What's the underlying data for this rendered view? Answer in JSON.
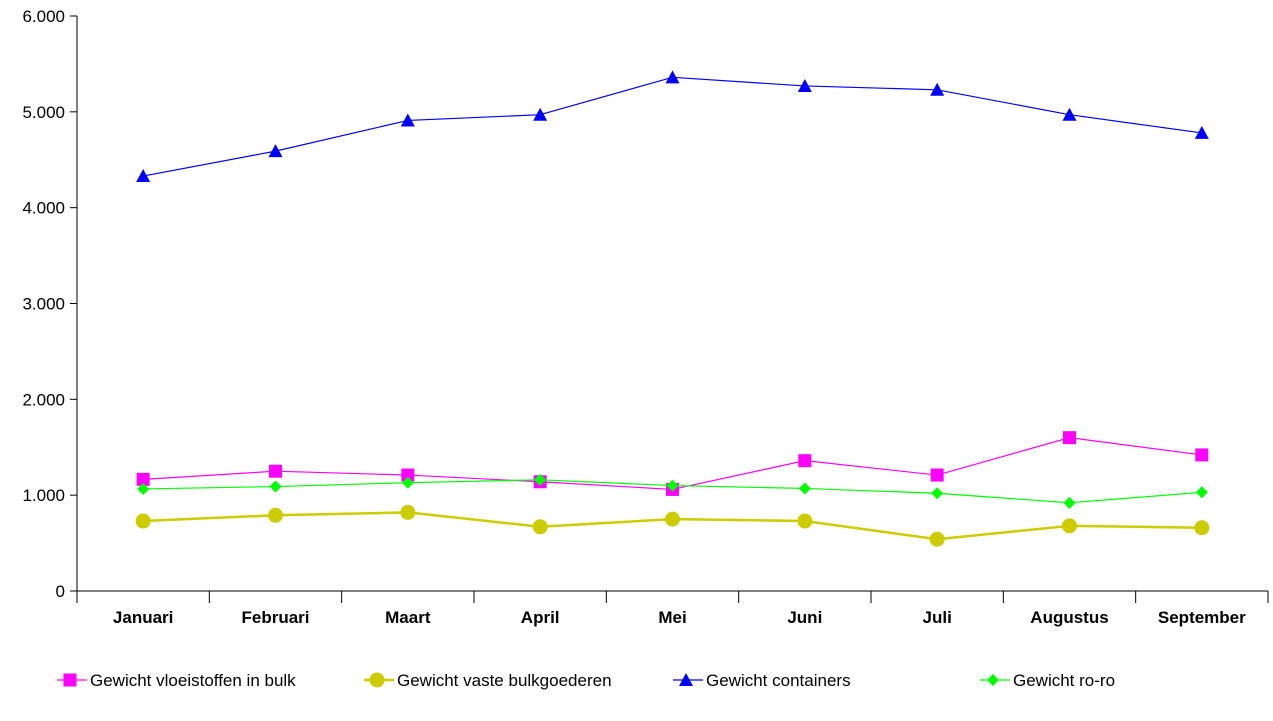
{
  "chart_data": {
    "type": "line",
    "categories": [
      "Januari",
      "Februari",
      "Maart",
      "April",
      "Mei",
      "Juni",
      "Juli",
      "Augustus",
      "September"
    ],
    "ylim": [
      0,
      6000
    ],
    "yticks": [
      0,
      1000,
      2000,
      3000,
      4000,
      5000,
      6000
    ],
    "ytick_labels": [
      "0",
      "1.000",
      "2.000",
      "3.000",
      "4.000",
      "5.000",
      "6.000"
    ],
    "grid": false,
    "legend_position": "bottom",
    "series": [
      {
        "name": "Gewicht vloeistoffen in bulk",
        "color": "#ff00ff",
        "marker": "square",
        "values": [
          1165,
          1250,
          1210,
          1140,
          1060,
          1360,
          1210,
          1600,
          1420
        ]
      },
      {
        "name": "Gewicht vaste bulkgoederen",
        "color": "#cccc00",
        "marker": "circle",
        "values": [
          730,
          790,
          820,
          670,
          750,
          730,
          540,
          680,
          660
        ]
      },
      {
        "name": "Gewicht containers",
        "color": "#0000ff",
        "marker": "triangle",
        "values": [
          4330,
          4590,
          4910,
          4970,
          5360,
          5270,
          5230,
          4970,
          4780
        ]
      },
      {
        "name": "Gewicht ro-ro",
        "color": "#00ff00",
        "marker": "diamond",
        "values": [
          1065,
          1090,
          1130,
          1160,
          1100,
          1070,
          1020,
          920,
          1030
        ]
      }
    ]
  }
}
